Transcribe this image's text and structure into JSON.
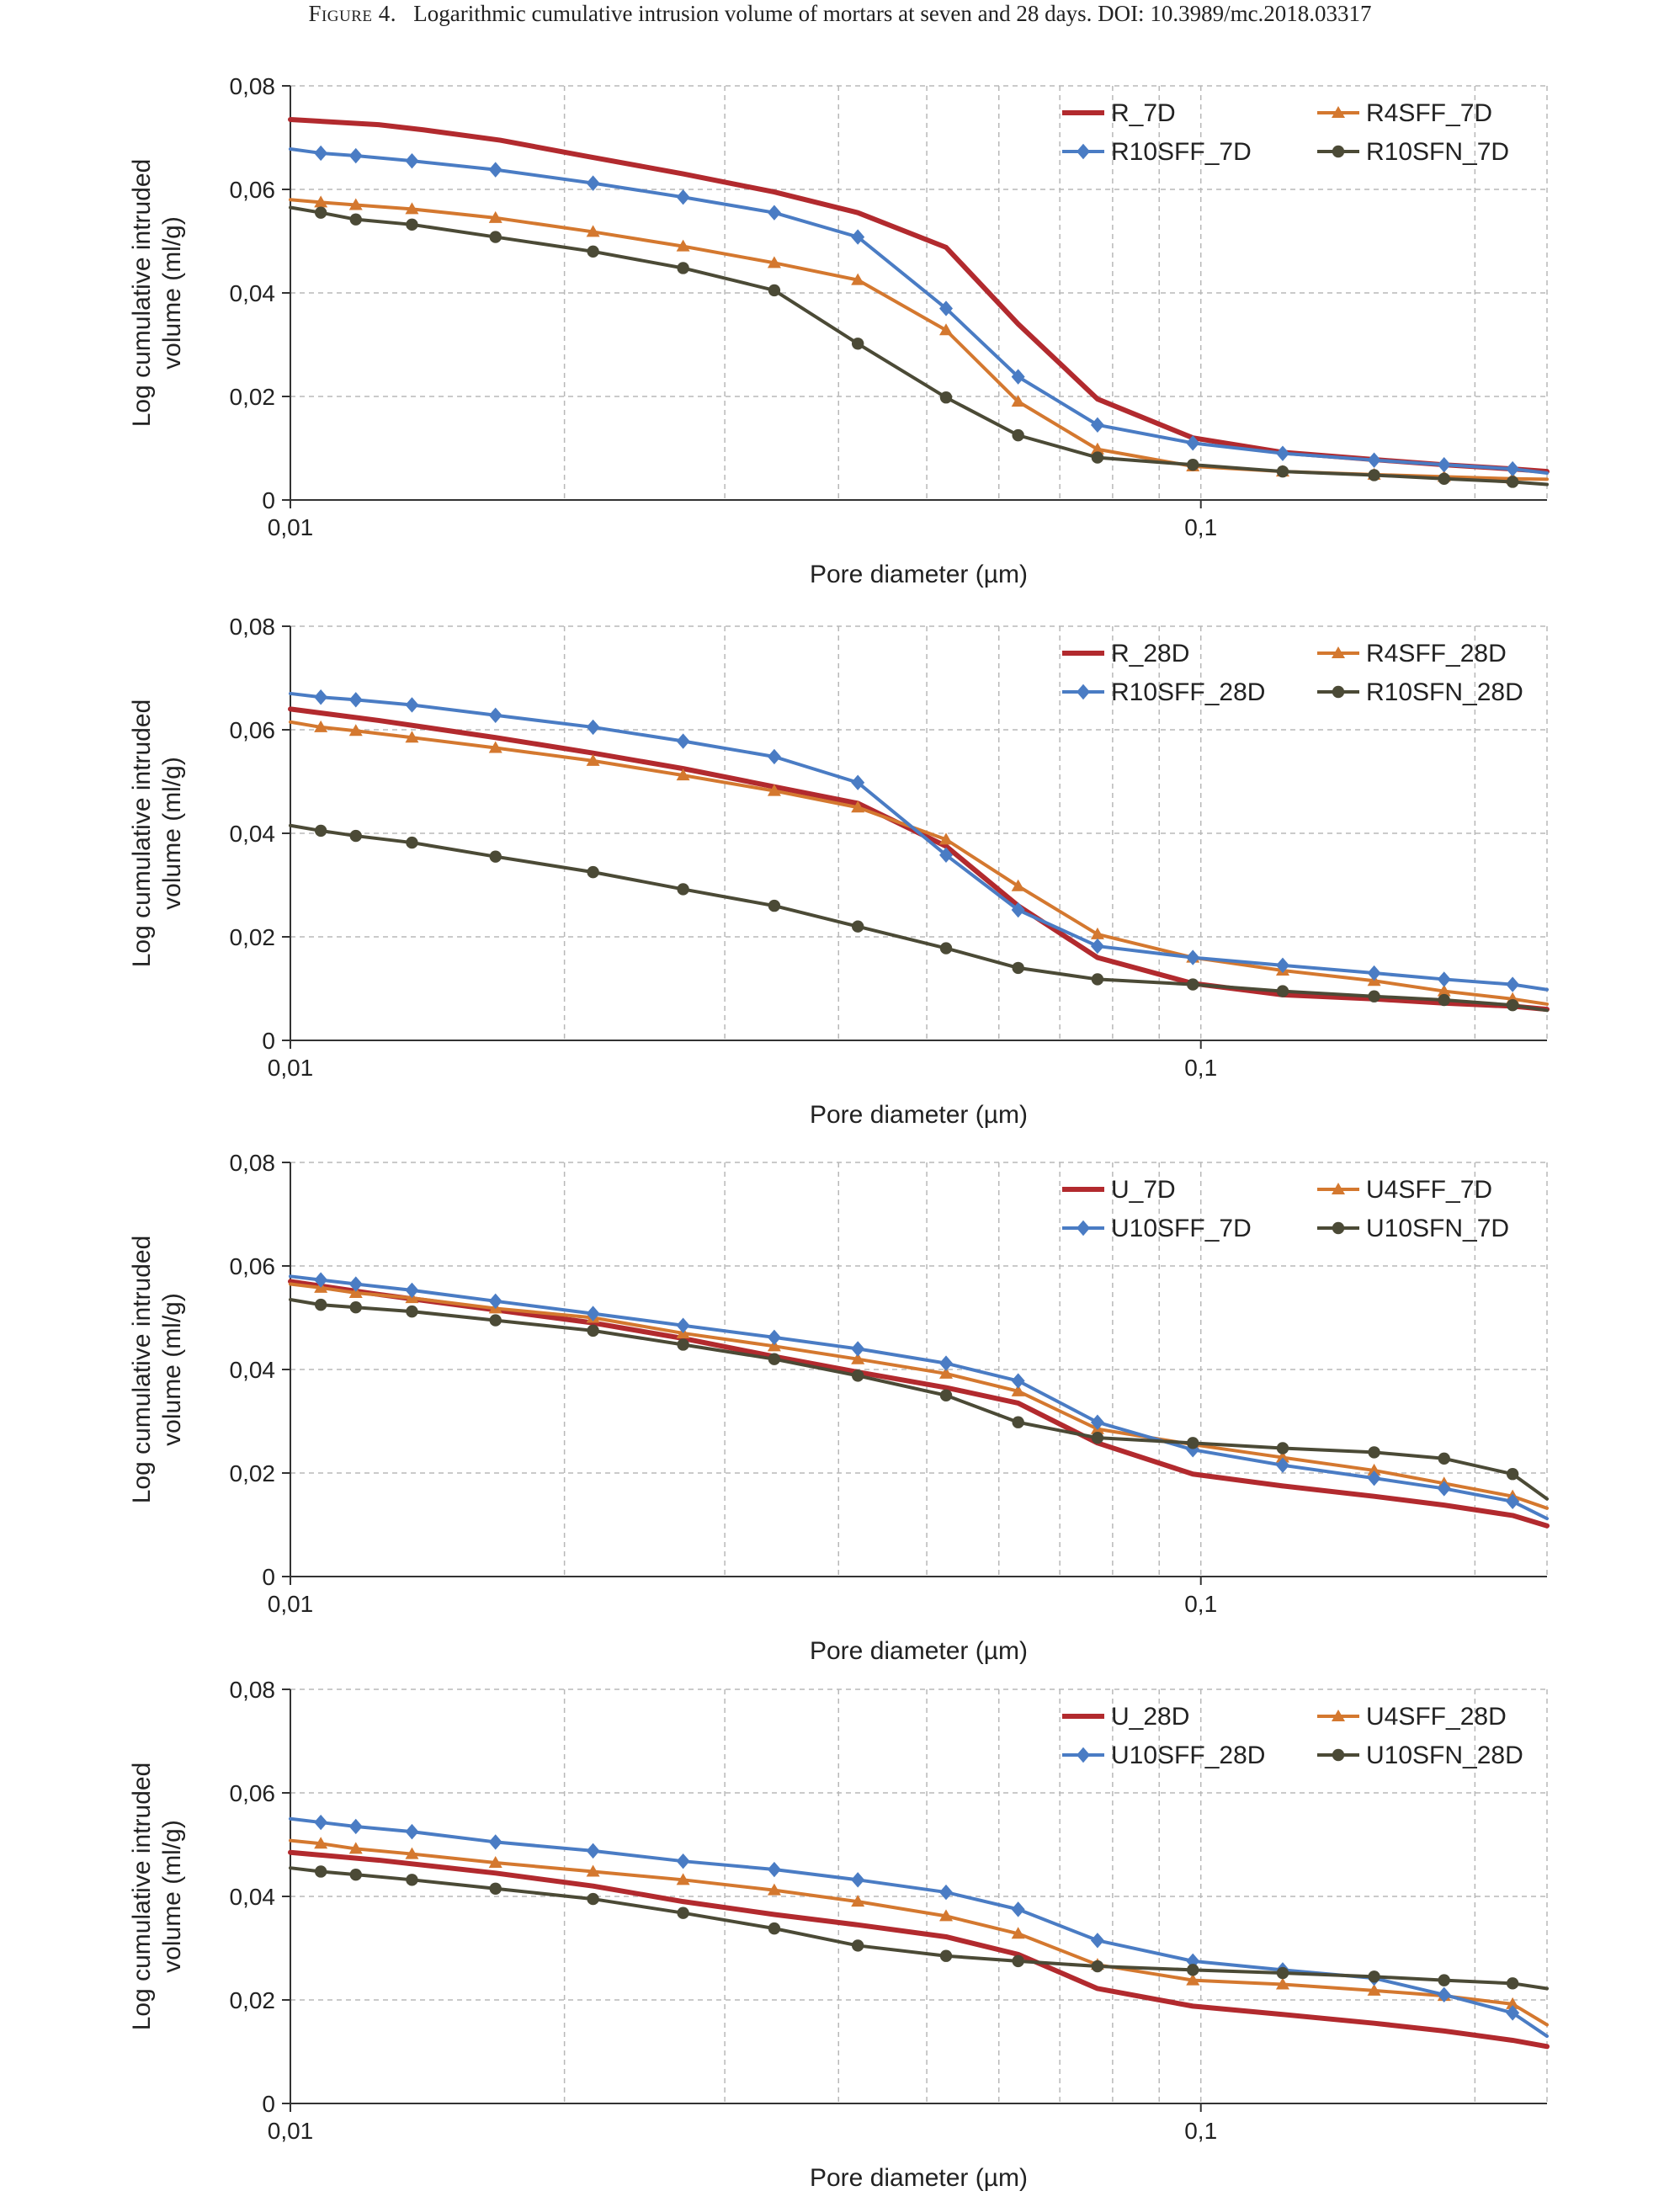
{
  "caption": {
    "label": "Figure 4.",
    "text": "Logarithmic cumulative intrusion volume of mortars at seven and 28 days. DOI: 10.3989/mc.2018.03317"
  },
  "colors": {
    "red": "#b22a2e",
    "orange": "#d4782f",
    "blue": "#4a7cc4",
    "dark": "#4b4a36",
    "grid": "#b8b8b8",
    "axis": "#333333",
    "text": "#222222"
  },
  "chart_data": [
    {
      "type": "line",
      "title": "",
      "xlabel": "Pore diameter (µm)",
      "ylabel": [
        "Log cumulative intruded",
        "volume (ml/g)"
      ],
      "x_scale": "log",
      "xlim": [
        0.01,
        0.24
      ],
      "ylim": [
        0,
        0.08
      ],
      "yticks": [
        "0",
        "0,02",
        "0,04",
        "0,06",
        "0,08"
      ],
      "xticks": [
        "0,01",
        "0,1"
      ],
      "grid": true,
      "legend_placement": "top-right",
      "series": [
        {
          "name": "R_7D",
          "color": "#b22a2e",
          "marker": "none",
          "x": [
            0.01,
            0.0125,
            0.014,
            0.017,
            0.021,
            0.027,
            0.034,
            0.042,
            0.0525,
            0.063,
            0.077,
            0.098,
            0.123,
            0.155,
            0.185,
            0.22,
            0.24
          ],
          "y": [
            0.0735,
            0.0725,
            0.0715,
            0.0695,
            0.0665,
            0.063,
            0.0595,
            0.0555,
            0.0488,
            0.034,
            0.0195,
            0.012,
            0.0092,
            0.0078,
            0.0068,
            0.006,
            0.0055
          ]
        },
        {
          "name": "R4SFF_7D",
          "color": "#d4782f",
          "marker": "triangle",
          "x": [
            0.01,
            0.0108,
            0.0118,
            0.0136,
            0.0168,
            0.0215,
            0.027,
            0.034,
            0.042,
            0.0525,
            0.063,
            0.077,
            0.098,
            0.123,
            0.155,
            0.185,
            0.22,
            0.24
          ],
          "y": [
            0.058,
            0.0575,
            0.057,
            0.0562,
            0.0545,
            0.0518,
            0.049,
            0.0458,
            0.0425,
            0.0328,
            0.019,
            0.0098,
            0.0065,
            0.0055,
            0.0049,
            0.0045,
            0.0041,
            0.004
          ]
        },
        {
          "name": "R10SFF_7D",
          "color": "#4a7cc4",
          "marker": "diamond",
          "x": [
            0.01,
            0.0108,
            0.0118,
            0.0136,
            0.0168,
            0.0215,
            0.027,
            0.034,
            0.042,
            0.0525,
            0.063,
            0.077,
            0.098,
            0.123,
            0.155,
            0.185,
            0.22,
            0.24
          ],
          "y": [
            0.0678,
            0.067,
            0.0665,
            0.0655,
            0.0638,
            0.0612,
            0.0585,
            0.0555,
            0.0508,
            0.037,
            0.0238,
            0.0145,
            0.011,
            0.009,
            0.0077,
            0.0068,
            0.006,
            0.0052
          ]
        },
        {
          "name": "R10SFN_7D",
          "color": "#4b4a36",
          "marker": "circle",
          "x": [
            0.01,
            0.0108,
            0.0118,
            0.0136,
            0.0168,
            0.0215,
            0.027,
            0.034,
            0.042,
            0.0525,
            0.063,
            0.077,
            0.098,
            0.123,
            0.155,
            0.185,
            0.22,
            0.24
          ],
          "y": [
            0.0565,
            0.0555,
            0.0542,
            0.0532,
            0.0508,
            0.048,
            0.0448,
            0.0405,
            0.0302,
            0.0198,
            0.0125,
            0.0082,
            0.0068,
            0.0055,
            0.0048,
            0.0041,
            0.0035,
            0.003
          ]
        }
      ],
      "legend": [
        [
          "R_7D",
          "R4SFF_7D"
        ],
        [
          "R10SFF_7D",
          "R10SFN_7D"
        ]
      ]
    },
    {
      "type": "line",
      "title": "",
      "xlabel": "Pore diameter (µm)",
      "ylabel": [
        "Log cumulative intruded",
        "volume (ml/g)"
      ],
      "x_scale": "log",
      "xlim": [
        0.01,
        0.24
      ],
      "ylim": [
        0,
        0.08
      ],
      "yticks": [
        "0",
        "0,02",
        "0,04",
        "0,06",
        "0,08"
      ],
      "xticks": [
        "0,01",
        "0,1"
      ],
      "grid": true,
      "legend_placement": "top-right",
      "series": [
        {
          "name": "R_28D",
          "color": "#b22a2e",
          "marker": "none",
          "x": [
            0.01,
            0.0125,
            0.0168,
            0.0215,
            0.027,
            0.034,
            0.042,
            0.0525,
            0.063,
            0.077,
            0.098,
            0.123,
            0.155,
            0.185,
            0.22,
            0.24
          ],
          "y": [
            0.064,
            0.0618,
            0.0585,
            0.0555,
            0.0525,
            0.049,
            0.0458,
            0.0375,
            0.026,
            0.016,
            0.011,
            0.0088,
            0.008,
            0.0072,
            0.0066,
            0.006
          ]
        },
        {
          "name": "R4SFF_28D",
          "color": "#d4782f",
          "marker": "triangle",
          "x": [
            0.01,
            0.0108,
            0.0118,
            0.0136,
            0.0168,
            0.0215,
            0.027,
            0.034,
            0.042,
            0.0525,
            0.063,
            0.077,
            0.098,
            0.123,
            0.155,
            0.185,
            0.22,
            0.24
          ],
          "y": [
            0.0615,
            0.0605,
            0.0598,
            0.0585,
            0.0565,
            0.054,
            0.0512,
            0.0482,
            0.045,
            0.0388,
            0.0298,
            0.0205,
            0.016,
            0.0135,
            0.0115,
            0.0095,
            0.008,
            0.007
          ]
        },
        {
          "name": "R10SFF_28D",
          "color": "#4a7cc4",
          "marker": "diamond",
          "x": [
            0.01,
            0.0108,
            0.0118,
            0.0136,
            0.0168,
            0.0215,
            0.027,
            0.034,
            0.042,
            0.0525,
            0.063,
            0.077,
            0.098,
            0.123,
            0.155,
            0.185,
            0.22,
            0.24
          ],
          "y": [
            0.067,
            0.0663,
            0.0658,
            0.0648,
            0.0628,
            0.0605,
            0.0578,
            0.0548,
            0.0498,
            0.0358,
            0.0252,
            0.0182,
            0.016,
            0.0145,
            0.013,
            0.0118,
            0.0108,
            0.0098
          ]
        },
        {
          "name": "R10SFN_28D",
          "color": "#4b4a36",
          "marker": "circle",
          "x": [
            0.01,
            0.0108,
            0.0118,
            0.0136,
            0.0168,
            0.0215,
            0.027,
            0.034,
            0.042,
            0.0525,
            0.063,
            0.077,
            0.098,
            0.123,
            0.155,
            0.185,
            0.22,
            0.24
          ],
          "y": [
            0.0415,
            0.0405,
            0.0395,
            0.0382,
            0.0355,
            0.0325,
            0.0292,
            0.026,
            0.022,
            0.0178,
            0.014,
            0.0118,
            0.0108,
            0.0095,
            0.0085,
            0.0078,
            0.0068,
            0.0058
          ]
        }
      ],
      "legend": [
        [
          "R_28D",
          "R4SFF_28D"
        ],
        [
          "R10SFF_28D",
          "R10SFN_28D"
        ]
      ]
    },
    {
      "type": "line",
      "title": "",
      "xlabel": "Pore diameter (µm)",
      "ylabel": [
        "Log cumulative intruded",
        "volume (ml/g)"
      ],
      "x_scale": "log",
      "xlim": [
        0.01,
        0.24
      ],
      "ylim": [
        0,
        0.08
      ],
      "yticks": [
        "0",
        "0,02",
        "0,04",
        "0,06",
        "0,08"
      ],
      "xticks": [
        "0,01",
        "0,1"
      ],
      "grid": true,
      "legend_placement": "top-right",
      "series": [
        {
          "name": "U_7D",
          "color": "#b22a2e",
          "marker": "none",
          "x": [
            0.01,
            0.0125,
            0.0168,
            0.0215,
            0.027,
            0.034,
            0.042,
            0.0525,
            0.063,
            0.077,
            0.098,
            0.123,
            0.155,
            0.185,
            0.22,
            0.24
          ],
          "y": [
            0.057,
            0.0545,
            0.0515,
            0.049,
            0.046,
            0.0425,
            0.0395,
            0.0365,
            0.0335,
            0.0258,
            0.0198,
            0.0175,
            0.0155,
            0.0138,
            0.0118,
            0.0098
          ]
        },
        {
          "name": "U4SFF_7D",
          "color": "#d4782f",
          "marker": "triangle",
          "x": [
            0.01,
            0.0108,
            0.0118,
            0.0136,
            0.0168,
            0.0215,
            0.027,
            0.034,
            0.042,
            0.0525,
            0.063,
            0.077,
            0.098,
            0.123,
            0.155,
            0.185,
            0.22,
            0.24
          ],
          "y": [
            0.0565,
            0.0558,
            0.0548,
            0.0538,
            0.0518,
            0.05,
            0.047,
            0.0445,
            0.042,
            0.0392,
            0.0358,
            0.0285,
            0.0255,
            0.023,
            0.0205,
            0.018,
            0.0155,
            0.0132
          ]
        },
        {
          "name": "U10SFF_7D",
          "color": "#4a7cc4",
          "marker": "diamond",
          "x": [
            0.01,
            0.0108,
            0.0118,
            0.0136,
            0.0168,
            0.0215,
            0.027,
            0.034,
            0.042,
            0.0525,
            0.063,
            0.077,
            0.098,
            0.123,
            0.155,
            0.185,
            0.22,
            0.24
          ],
          "y": [
            0.058,
            0.0573,
            0.0565,
            0.0553,
            0.0532,
            0.0508,
            0.0485,
            0.0462,
            0.044,
            0.0412,
            0.0378,
            0.0298,
            0.0245,
            0.0215,
            0.019,
            0.017,
            0.0145,
            0.0112
          ]
        },
        {
          "name": "U10SFN_7D",
          "color": "#4b4a36",
          "marker": "circle",
          "x": [
            0.01,
            0.0108,
            0.0118,
            0.0136,
            0.0168,
            0.0215,
            0.027,
            0.034,
            0.042,
            0.0525,
            0.063,
            0.077,
            0.098,
            0.123,
            0.155,
            0.185,
            0.22,
            0.24
          ],
          "y": [
            0.0535,
            0.0525,
            0.052,
            0.0512,
            0.0495,
            0.0475,
            0.0448,
            0.042,
            0.0388,
            0.035,
            0.0298,
            0.0268,
            0.0258,
            0.0248,
            0.024,
            0.0228,
            0.0198,
            0.015
          ]
        }
      ],
      "legend": [
        [
          "U_7D",
          "U4SFF_7D"
        ],
        [
          "U10SFF_7D",
          "U10SFN_7D"
        ]
      ]
    },
    {
      "type": "line",
      "title": "",
      "xlabel": "Pore diameter (µm)",
      "ylabel": [
        "Log cumulative intruded",
        "volume (ml/g)"
      ],
      "x_scale": "log",
      "xlim": [
        0.01,
        0.24
      ],
      "ylim": [
        0,
        0.08
      ],
      "yticks": [
        "0",
        "0,02",
        "0,04",
        "0,06",
        "0,08"
      ],
      "xticks": [
        "0,01",
        "0,1"
      ],
      "grid": true,
      "legend_placement": "top-right",
      "series": [
        {
          "name": "U_28D",
          "color": "#b22a2e",
          "marker": "none",
          "x": [
            0.01,
            0.0125,
            0.0168,
            0.0215,
            0.027,
            0.034,
            0.042,
            0.0525,
            0.063,
            0.077,
            0.098,
            0.123,
            0.155,
            0.185,
            0.22,
            0.24
          ],
          "y": [
            0.0485,
            0.047,
            0.0445,
            0.042,
            0.039,
            0.0365,
            0.0345,
            0.0322,
            0.0288,
            0.0222,
            0.0188,
            0.0172,
            0.0155,
            0.014,
            0.0122,
            0.011
          ]
        },
        {
          "name": "U4SFF_28D",
          "color": "#d4782f",
          "marker": "triangle",
          "x": [
            0.01,
            0.0108,
            0.0118,
            0.0136,
            0.0168,
            0.0215,
            0.027,
            0.034,
            0.042,
            0.0525,
            0.063,
            0.077,
            0.098,
            0.123,
            0.155,
            0.185,
            0.22,
            0.24
          ],
          "y": [
            0.0508,
            0.0502,
            0.0492,
            0.0482,
            0.0465,
            0.0448,
            0.0432,
            0.0412,
            0.039,
            0.0362,
            0.0328,
            0.0268,
            0.0238,
            0.023,
            0.0218,
            0.0208,
            0.0192,
            0.0152
          ]
        },
        {
          "name": "U10SFF_28D",
          "color": "#4a7cc4",
          "marker": "diamond",
          "x": [
            0.01,
            0.0108,
            0.0118,
            0.0136,
            0.0168,
            0.0215,
            0.027,
            0.034,
            0.042,
            0.0525,
            0.063,
            0.077,
            0.098,
            0.123,
            0.155,
            0.185,
            0.22,
            0.24
          ],
          "y": [
            0.055,
            0.0543,
            0.0535,
            0.0525,
            0.0505,
            0.0488,
            0.0468,
            0.0452,
            0.0432,
            0.0408,
            0.0375,
            0.0315,
            0.0275,
            0.0258,
            0.0242,
            0.021,
            0.0175,
            0.013
          ]
        },
        {
          "name": "U10SFN_28D",
          "color": "#4b4a36",
          "marker": "circle",
          "x": [
            0.01,
            0.0108,
            0.0118,
            0.0136,
            0.0168,
            0.0215,
            0.027,
            0.034,
            0.042,
            0.0525,
            0.063,
            0.077,
            0.098,
            0.123,
            0.155,
            0.185,
            0.22,
            0.24
          ],
          "y": [
            0.0455,
            0.0448,
            0.0442,
            0.0432,
            0.0415,
            0.0395,
            0.0368,
            0.0338,
            0.0305,
            0.0285,
            0.0275,
            0.0265,
            0.0258,
            0.0252,
            0.0245,
            0.0238,
            0.0232,
            0.0222
          ]
        }
      ],
      "legend": [
        [
          "U_28D",
          "U4SFF_28D"
        ],
        [
          "U10SFF_28D",
          "U10SFN_28D"
        ]
      ]
    }
  ]
}
